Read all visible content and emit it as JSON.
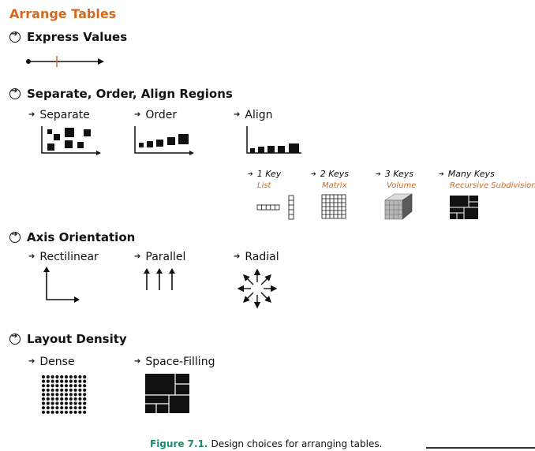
{
  "title": "Arrange Tables",
  "sections": {
    "express": {
      "label": "Express Values"
    },
    "separate_order_align": {
      "label": "Separate, Order, Align Regions",
      "items": [
        "Separate",
        "Order",
        "Align"
      ],
      "keys": [
        {
          "label": "1 Key",
          "sub": "List"
        },
        {
          "label": "2 Keys",
          "sub": "Matrix"
        },
        {
          "label": "3 Keys",
          "sub": "Volume"
        },
        {
          "label": "Many Keys",
          "sub": "Recursive Subdivision"
        }
      ]
    },
    "axis": {
      "label": "Axis Orientation",
      "items": [
        "Rectilinear",
        "Parallel",
        "Radial"
      ]
    },
    "density": {
      "label": "Layout Density",
      "items": [
        "Dense",
        "Space-Filling"
      ]
    }
  },
  "caption": {
    "figure": "Figure 7.1.",
    "text": "Design choices for arranging tables."
  },
  "colors": {
    "accent": "#d2691e",
    "caption_accent": "#1f8a6f",
    "ink": "#111111"
  },
  "icons": [
    "circle-arrow-icon",
    "arrow-icon"
  ]
}
